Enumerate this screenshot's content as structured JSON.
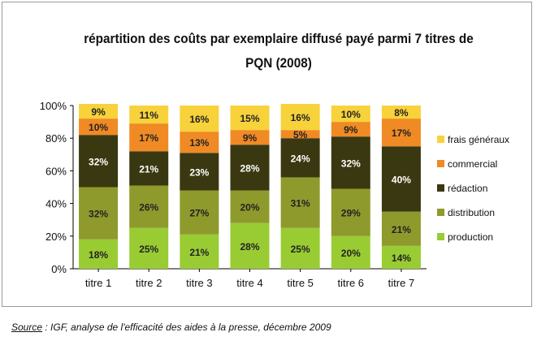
{
  "chart_data": {
    "type": "bar",
    "stacked": true,
    "title": "répartition des coûts par exemplaire diffusé payé parmi 7 titres de PQN (2008)",
    "categories": [
      "titre 1",
      "titre 2",
      "titre 3",
      "titre 4",
      "titre 5",
      "titre 6",
      "titre 7"
    ],
    "ylim": [
      0,
      100
    ],
    "yticks": [
      "0%",
      "20%",
      "40%",
      "60%",
      "80%",
      "100%"
    ],
    "legend_position": "right",
    "series": [
      {
        "name": "production",
        "color": "#99cc33",
        "label_color": "#222222",
        "values": [
          18,
          25,
          21,
          28,
          25,
          20,
          14
        ]
      },
      {
        "name": "distribution",
        "color": "#8f9a2c",
        "label_color": "#222222",
        "values": [
          32,
          26,
          27,
          20,
          31,
          29,
          21
        ]
      },
      {
        "name": "rédaction",
        "color": "#3a3810",
        "label_color": "#ffffff",
        "values": [
          32,
          21,
          23,
          28,
          24,
          32,
          40
        ]
      },
      {
        "name": "commercial",
        "color": "#f08a24",
        "label_color": "#222222",
        "values": [
          10,
          17,
          13,
          9,
          5,
          9,
          17
        ]
      },
      {
        "name": "frais généraux",
        "color": "#f7d23a",
        "label_color": "#222222",
        "values": [
          9,
          11,
          16,
          15,
          16,
          10,
          8
        ]
      }
    ]
  },
  "source": {
    "label": "Source",
    "text": " : IGF, analyse de l'efficacité des aides à la presse, décembre 2009"
  }
}
